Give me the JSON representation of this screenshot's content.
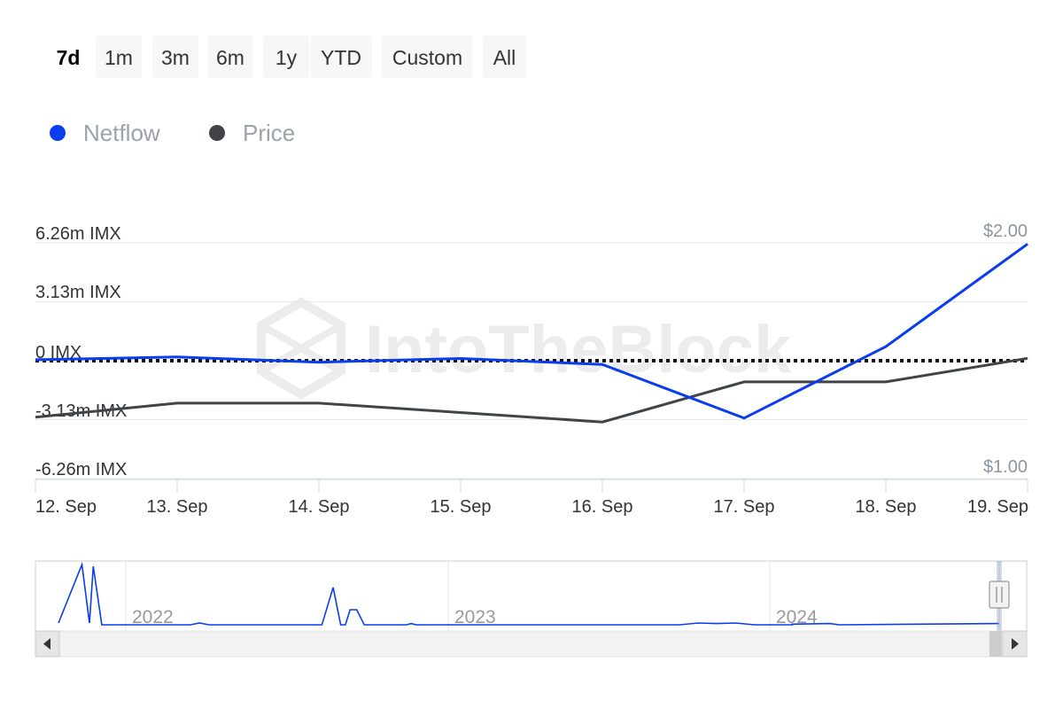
{
  "range_selector": {
    "buttons": [
      "7d",
      "1m",
      "3m",
      "6m",
      "1y",
      "YTD",
      "Custom",
      "All"
    ],
    "selected": "7d"
  },
  "legend": [
    {
      "label": "Netflow",
      "color": "#0a3cf0"
    },
    {
      "label": "Price",
      "color": "#404448"
    }
  ],
  "watermark": "IntoTheBlock",
  "chart_data": {
    "type": "line",
    "x": [
      "12. Sep",
      "13. Sep",
      "14. Sep",
      "15. Sep",
      "16. Sep",
      "17. Sep",
      "18. Sep",
      "19. Sep"
    ],
    "series": [
      {
        "name": "Netflow",
        "axis": "left",
        "color": "#0a3cf0",
        "values": [
          0.05,
          0.2,
          -0.08,
          0.12,
          -0.2,
          -3.05,
          0.75,
          6.2
        ]
      },
      {
        "name": "Price",
        "axis": "right",
        "color": "#404448",
        "values": [
          1.26,
          1.32,
          1.32,
          1.28,
          1.24,
          1.41,
          1.41,
          1.51
        ]
      }
    ],
    "y_left": {
      "ticks": [
        "6.26m IMX",
        "3.13m IMX",
        "0 IMX",
        "-3.13m IMX",
        "-6.26m IMX"
      ],
      "range": [
        -6.26,
        6.26
      ]
    },
    "y_right": {
      "ticks": [
        "$2.00",
        "$1.00"
      ],
      "range": [
        1.0,
        2.0
      ]
    },
    "zero_line": "dotted",
    "navigator": {
      "years": [
        "2022",
        "2023",
        "2024"
      ],
      "series": [
        {
          "t": 0.0,
          "v": 0.03
        },
        {
          "t": 0.025,
          "v": 1.0
        },
        {
          "t": 0.033,
          "v": 0.03
        },
        {
          "t": 0.037,
          "v": 0.97
        },
        {
          "t": 0.046,
          "v": 0.0
        },
        {
          "t": 0.14,
          "v": 0.0
        },
        {
          "t": 0.15,
          "v": 0.03
        },
        {
          "t": 0.16,
          "v": 0.0
        },
        {
          "t": 0.28,
          "v": 0.0
        },
        {
          "t": 0.292,
          "v": 0.62
        },
        {
          "t": 0.3,
          "v": 0.0
        },
        {
          "t": 0.305,
          "v": 0.0
        },
        {
          "t": 0.31,
          "v": 0.25
        },
        {
          "t": 0.317,
          "v": 0.25
        },
        {
          "t": 0.325,
          "v": 0.0
        },
        {
          "t": 0.37,
          "v": 0.0
        },
        {
          "t": 0.375,
          "v": 0.02
        },
        {
          "t": 0.38,
          "v": 0.0
        },
        {
          "t": 0.66,
          "v": 0.0
        },
        {
          "t": 0.68,
          "v": 0.03
        },
        {
          "t": 0.7,
          "v": 0.02
        },
        {
          "t": 0.72,
          "v": 0.03
        },
        {
          "t": 0.74,
          "v": 0.0
        },
        {
          "t": 0.78,
          "v": 0.0
        },
        {
          "t": 0.78,
          "v": 0.01
        },
        {
          "t": 0.82,
          "v": 0.02
        },
        {
          "t": 0.83,
          "v": 0.0
        },
        {
          "t": 1.0,
          "v": 0.02
        }
      ]
    }
  }
}
